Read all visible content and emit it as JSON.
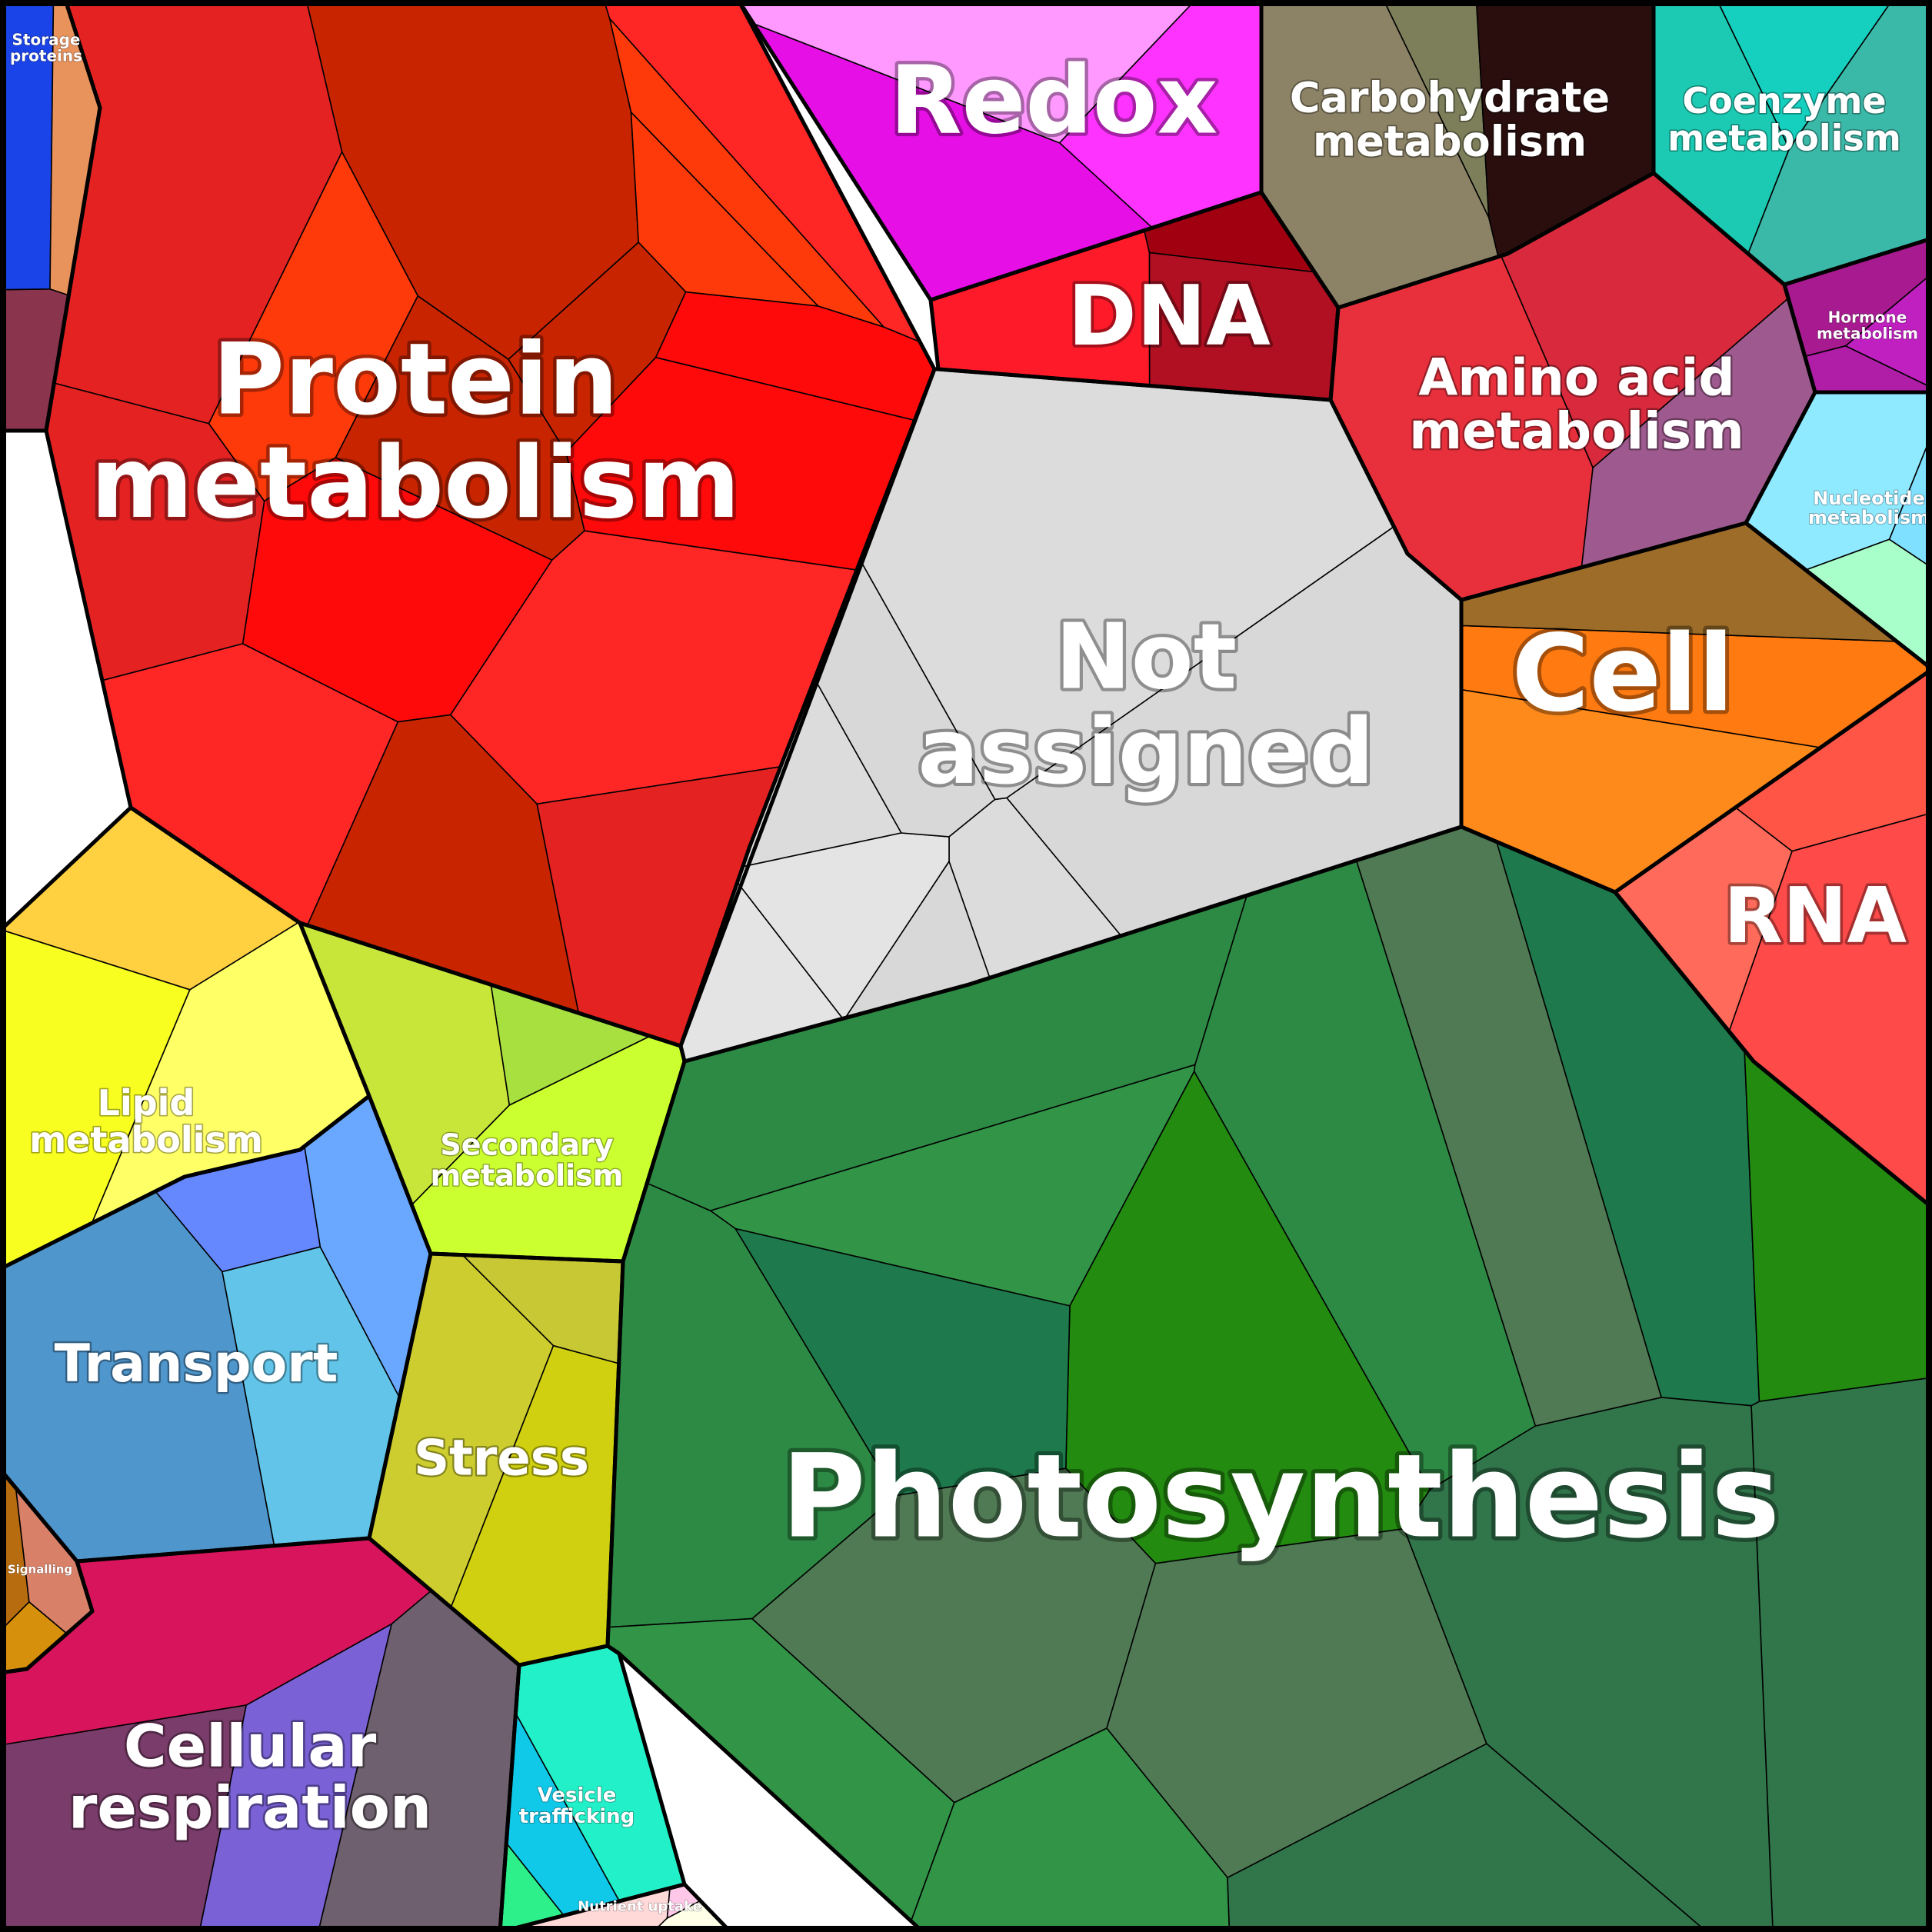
{
  "chart_data": {
    "type": "voronoi-treemap",
    "title": "",
    "categories": [
      {
        "name": "Protein metabolism",
        "color": "#ff2626"
      },
      {
        "name": "Redox",
        "color": "#ff3dff"
      },
      {
        "name": "DNA",
        "color": "#b01022"
      },
      {
        "name": "Carbohydrate metabolism",
        "color": "#7c7f5a"
      },
      {
        "name": "Coenzyme metabolism",
        "color": "#1cc9b2"
      },
      {
        "name": "Hormone metabolism",
        "color": "#b01ea8"
      },
      {
        "name": "Amino acid metabolism",
        "color": "#d82a3c"
      },
      {
        "name": "Nucleotide metabolism",
        "color": "#8fe9ff"
      },
      {
        "name": "Not assigned",
        "color": "#dcdcdc"
      },
      {
        "name": "Cell",
        "color": "#ff8a1c"
      },
      {
        "name": "RNA",
        "color": "#ff5547"
      },
      {
        "name": "Photosynthesis",
        "color": "#329447"
      },
      {
        "name": "Storage proteins",
        "color": "#8a344e"
      },
      {
        "name": "Lipid metabolism",
        "color": "#ffff66"
      },
      {
        "name": "Secondary metabolism",
        "color": "#c8e63a"
      },
      {
        "name": "Transport",
        "color": "#4f96cc"
      },
      {
        "name": "Stress",
        "color": "#c8c834"
      },
      {
        "name": "Signalling",
        "color": "#d6900c"
      },
      {
        "name": "Cellular respiration",
        "color": "#7a3c6a"
      },
      {
        "name": "Vesicle trafficking",
        "color": "#2ef08a"
      },
      {
        "name": "Nutrient uptake",
        "color": "#ffd8d8"
      }
    ]
  }
}
